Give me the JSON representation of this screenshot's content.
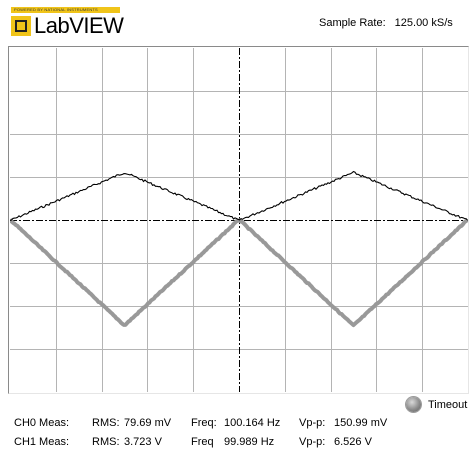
{
  "logo": {
    "powered_by": "POWERED BY NATIONAL INSTRUMENTS",
    "text": "LabVIEW",
    "badge_color": "#f0c419"
  },
  "sample_rate": {
    "label": "Sample Rate:",
    "value": "125.00 kS/s"
  },
  "graph": {
    "background": "#ffffff",
    "grid_color": "#b4b4b4",
    "axis_color": "#000000",
    "grid_divisions_x": 10,
    "grid_divisions_y": 8,
    "series": [
      {
        "channel": "CH0",
        "waveform": "triangle",
        "color": "#000000",
        "stroke": "thin",
        "phase": "peak-at-edges-and-center"
      },
      {
        "channel": "CH1",
        "waveform": "triangle",
        "color": "#999999",
        "stroke": "thick",
        "phase": "valley-at-edges-and-center"
      }
    ]
  },
  "timeout": {
    "label": "Timeout",
    "led_state": "off"
  },
  "measurements": [
    {
      "label": "CH0 Meas:",
      "rms_label": "RMS:",
      "rms_value": "79.69 mV",
      "freq_label": "Freq:",
      "freq_value": "100.164 Hz",
      "vpp_label": "Vp-p:",
      "vpp_value": "150.99 mV"
    },
    {
      "label": "CH1 Meas:",
      "rms_label": "RMS:",
      "rms_value": "3.723 V",
      "freq_label": "Freq",
      "freq_value": "99.989 Hz",
      "vpp_label": "Vp-p:",
      "vpp_value": "6.526 V"
    }
  ]
}
